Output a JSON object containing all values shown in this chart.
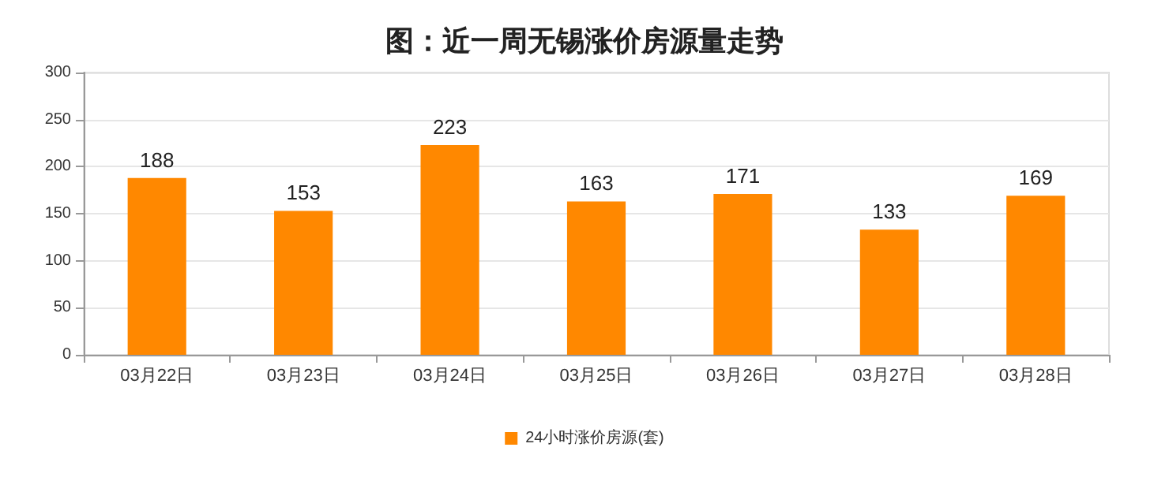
{
  "chart_data": {
    "type": "bar",
    "title": "图：近一周无锡涨价房源量走势",
    "categories": [
      "03月22日",
      "03月23日",
      "03月24日",
      "03月25日",
      "03月26日",
      "03月27日",
      "03月28日"
    ],
    "series": [
      {
        "name": "24小时涨价房源(套)",
        "color": "#ff8800",
        "values": [
          188,
          153,
          223,
          163,
          171,
          133,
          169
        ]
      }
    ],
    "ylim": [
      0,
      300
    ],
    "yticks": [
      0,
      50,
      100,
      150,
      200,
      250,
      300
    ],
    "grid": "y",
    "legend": "bottom",
    "data_labels": true
  }
}
